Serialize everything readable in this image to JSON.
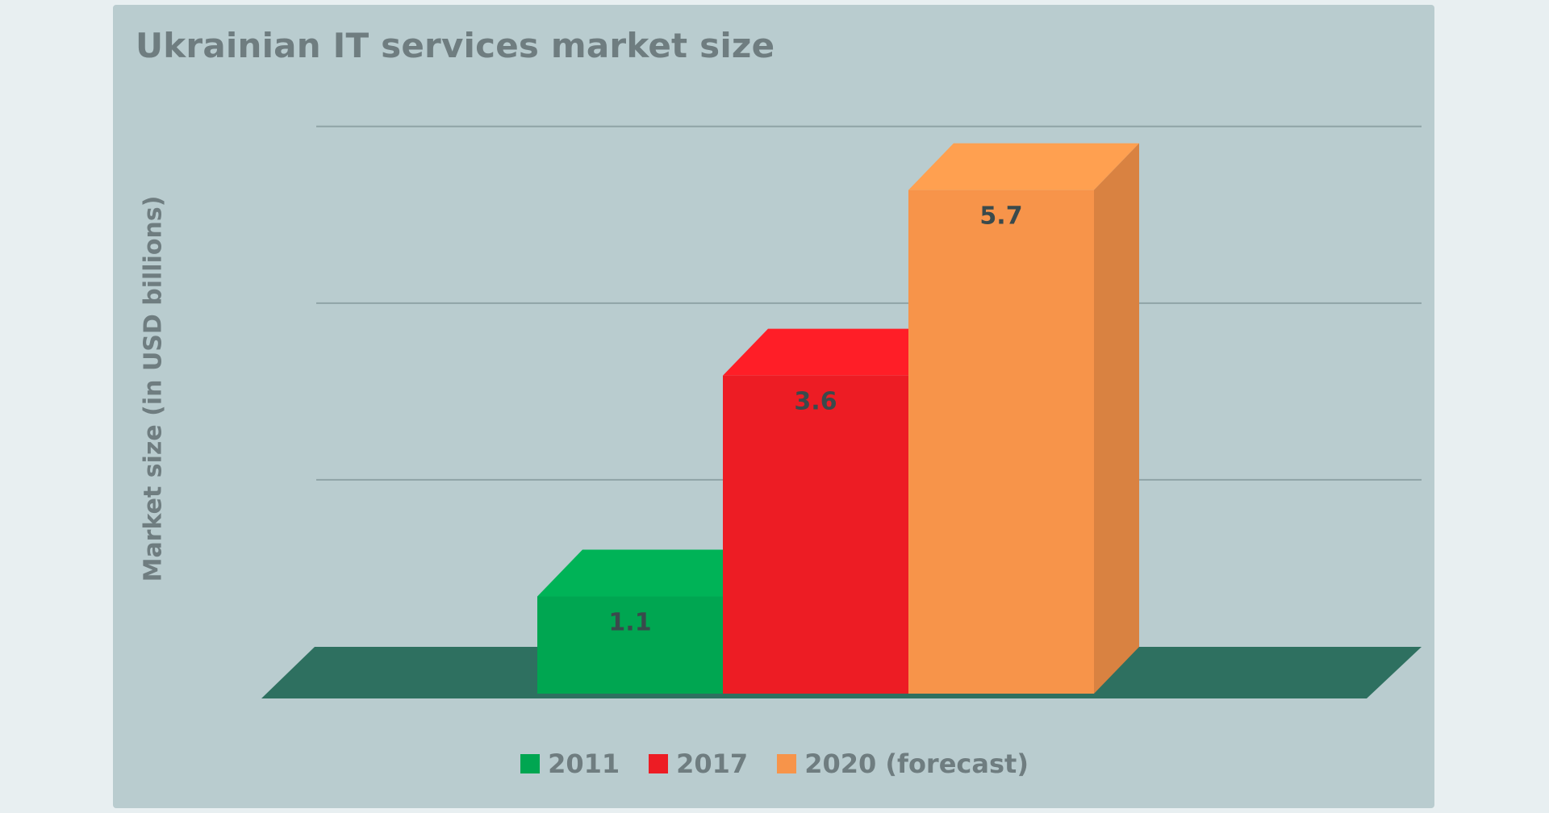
{
  "chart_data": {
    "type": "bar",
    "title": "Ukrainian IT services market size",
    "ylabel": "Market size (in USD billions)",
    "xlabel": "",
    "categories": [
      "2011",
      "2017",
      "2020 (forecast)"
    ],
    "values": [
      1.1,
      3.6,
      5.7
    ],
    "data_labels": [
      "1.1",
      "3.6",
      "5.7"
    ],
    "ylim": [
      0,
      6.5
    ],
    "grid": true,
    "legend_position": "bottom",
    "colors": {
      "2011": "#00a651",
      "2017": "#ed1c24",
      "2020 (forecast)": "#f7944a"
    },
    "floor_color": "#2e7060",
    "background": "#b9cccf"
  }
}
